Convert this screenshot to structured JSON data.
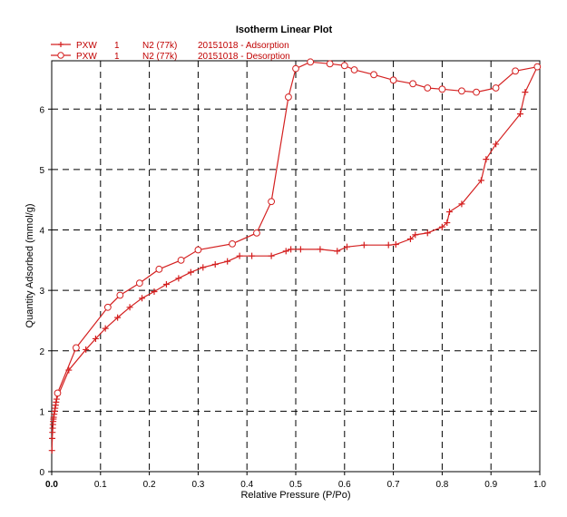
{
  "chart_data": {
    "type": "line",
    "title": "Isotherm Linear Plot",
    "xlabel": "Relative Pressure (P/Po)",
    "ylabel": "Quantity Adsorbed (mmol/g)",
    "xlim": [
      0,
      1.0
    ],
    "ylim": [
      0,
      6.8
    ],
    "grid": true,
    "legend_position": "top-left",
    "x_ticks": [
      "0.0",
      "0.1",
      "0.2",
      "0.3",
      "0.4",
      "0.5",
      "0.6",
      "0.7",
      "0.8",
      "0.9",
      "1.0"
    ],
    "x_tick_values": [
      0,
      0.1,
      0.2,
      0.3,
      0.4,
      0.5,
      0.6,
      0.7,
      0.8,
      0.9,
      1.0
    ],
    "y_ticks": [
      "0",
      "1",
      "2",
      "3",
      "4",
      "5",
      "6"
    ],
    "y_tick_values": [
      0,
      1,
      2,
      3,
      4,
      5,
      6
    ],
    "legend": [
      {
        "sample": "PXW",
        "run": "1",
        "gas": "N2 (77k)",
        "description": "20151018 - Adsorption",
        "marker": "plus"
      },
      {
        "sample": "PXW",
        "run": "1",
        "gas": "N2 (77k)",
        "description": "20151018 - Desorption",
        "marker": "circle"
      }
    ],
    "series": [
      {
        "name": "PXW 1 N2 (77k) 20151018 - Adsorption",
        "marker": "plus",
        "color": "#d42020",
        "x": [
          0.0005,
          0.001,
          0.0015,
          0.002,
          0.0025,
          0.003,
          0.0035,
          0.004,
          0.005,
          0.006,
          0.007,
          0.008,
          0.009,
          0.01,
          0.035,
          0.07,
          0.09,
          0.11,
          0.135,
          0.16,
          0.185,
          0.21,
          0.235,
          0.26,
          0.285,
          0.31,
          0.335,
          0.36,
          0.385,
          0.41,
          0.45,
          0.48,
          0.49,
          0.51,
          0.55,
          0.585,
          0.605,
          0.64,
          0.69,
          0.705,
          0.735,
          0.745,
          0.77,
          0.8,
          0.81,
          0.815,
          0.84,
          0.88,
          0.89,
          0.91,
          0.96,
          0.97,
          0.995
        ],
        "y": [
          0.35,
          0.55,
          0.65,
          0.72,
          0.78,
          0.83,
          0.87,
          0.9,
          0.95,
          1.0,
          1.05,
          1.1,
          1.15,
          1.2,
          1.68,
          2.02,
          2.2,
          2.37,
          2.55,
          2.72,
          2.87,
          2.98,
          3.1,
          3.2,
          3.3,
          3.38,
          3.43,
          3.48,
          3.57,
          3.57,
          3.57,
          3.65,
          3.68,
          3.68,
          3.68,
          3.65,
          3.72,
          3.75,
          3.75,
          3.76,
          3.85,
          3.92,
          3.95,
          4.05,
          4.12,
          4.3,
          4.43,
          4.82,
          5.17,
          5.42,
          5.92,
          6.28,
          6.7
        ]
      },
      {
        "name": "PXW 1 N2 (77k) 20151018 - Desorption",
        "marker": "circle",
        "color": "#d42020",
        "x": [
          0.995,
          0.95,
          0.91,
          0.87,
          0.84,
          0.8,
          0.77,
          0.74,
          0.7,
          0.66,
          0.62,
          0.6,
          0.57,
          0.53,
          0.5,
          0.485,
          0.45,
          0.42,
          0.37,
          0.3,
          0.265,
          0.22,
          0.18,
          0.14,
          0.115,
          0.05,
          0.012
        ],
        "y": [
          6.7,
          6.63,
          6.35,
          6.28,
          6.3,
          6.33,
          6.35,
          6.42,
          6.48,
          6.57,
          6.65,
          6.72,
          6.75,
          6.78,
          6.67,
          6.2,
          4.47,
          3.95,
          3.77,
          3.67,
          3.5,
          3.35,
          3.12,
          2.92,
          2.72,
          2.05,
          1.3
        ]
      }
    ]
  }
}
